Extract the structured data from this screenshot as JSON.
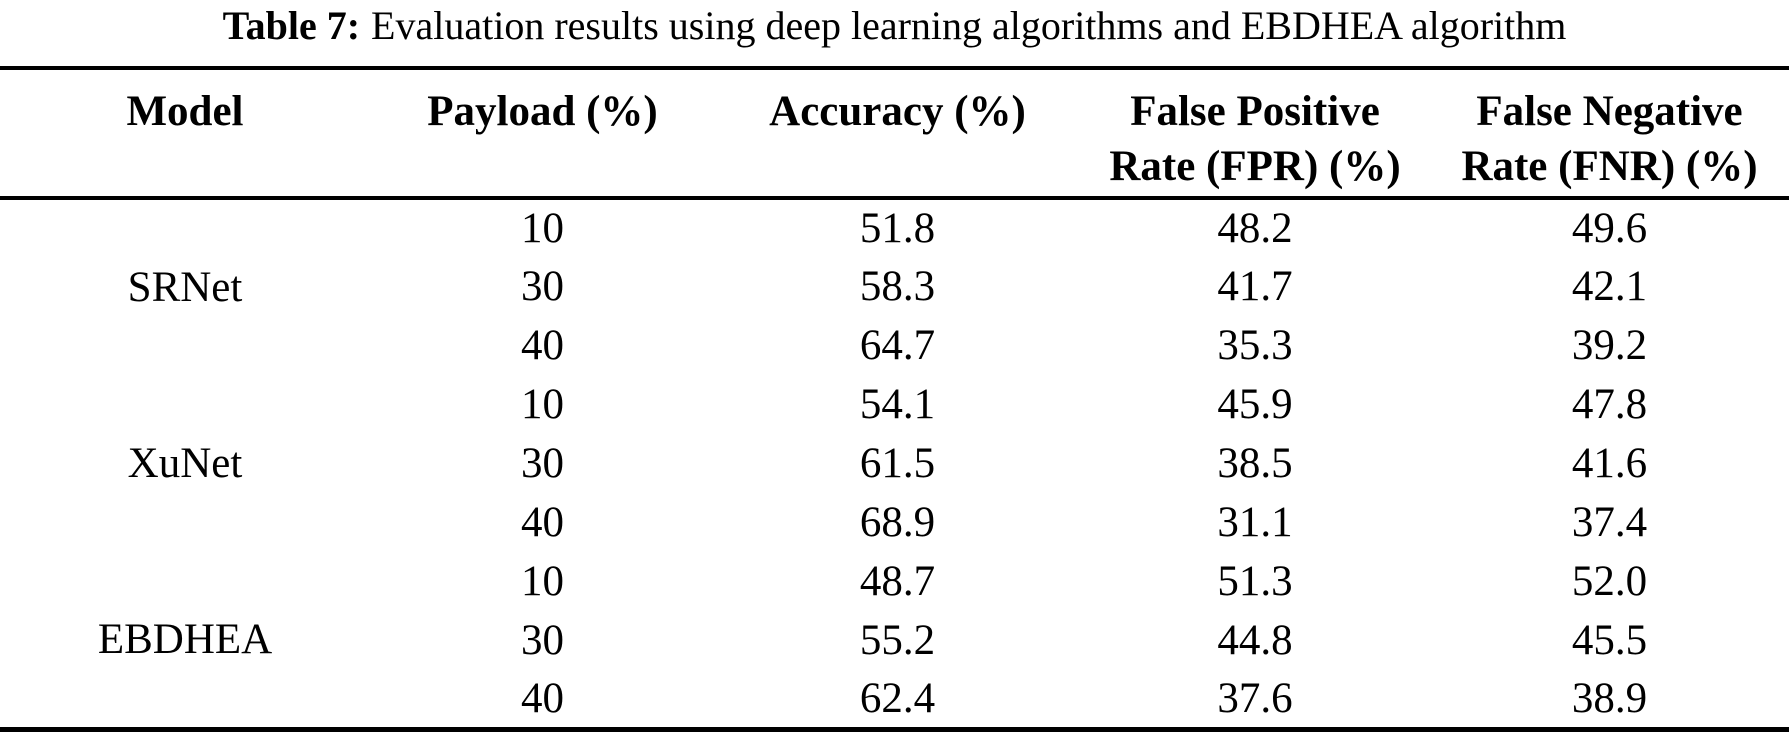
{
  "title": {
    "label": "Table 7:",
    "text": "Evaluation results using deep learning algorithms and EBDHEA algorithm"
  },
  "table": {
    "headers": {
      "model": "Model",
      "payload": "Payload (%)",
      "accuracy": "Accuracy (%)",
      "fpr_line1": "False Positive",
      "fpr_line2": "Rate (FPR) (%)",
      "fnr_line1": "False Negative",
      "fnr_line2": "Rate (FNR) (%)"
    },
    "groups": [
      {
        "model": "SRNet",
        "rows": [
          {
            "payload": "10",
            "accuracy": "51.8",
            "fpr": "48.2",
            "fnr": "49.6"
          },
          {
            "payload": "30",
            "accuracy": "58.3",
            "fpr": "41.7",
            "fnr": "42.1"
          },
          {
            "payload": "40",
            "accuracy": "64.7",
            "fpr": "35.3",
            "fnr": "39.2"
          }
        ]
      },
      {
        "model": "XuNet",
        "rows": [
          {
            "payload": "10",
            "accuracy": "54.1",
            "fpr": "45.9",
            "fnr": "47.8"
          },
          {
            "payload": "30",
            "accuracy": "61.5",
            "fpr": "38.5",
            "fnr": "41.6"
          },
          {
            "payload": "40",
            "accuracy": "68.9",
            "fpr": "31.1",
            "fnr": "37.4"
          }
        ]
      },
      {
        "model": "EBDHEA",
        "rows": [
          {
            "payload": "10",
            "accuracy": "48.7",
            "fpr": "51.3",
            "fnr": "52.0"
          },
          {
            "payload": "30",
            "accuracy": "55.2",
            "fpr": "44.8",
            "fnr": "45.5"
          },
          {
            "payload": "40",
            "accuracy": "62.4",
            "fpr": "37.6",
            "fnr": "38.9"
          }
        ]
      }
    ]
  },
  "colors": {
    "text": "#000000",
    "background": "#ffffff",
    "rule": "#000000"
  }
}
